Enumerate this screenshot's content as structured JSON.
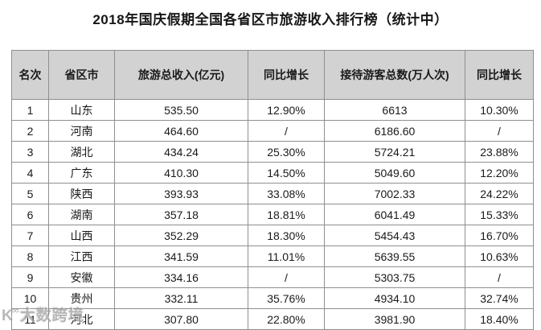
{
  "title": "2018年国庆假期全国各省区市旅游收入排行榜（统计中）",
  "chart_data": {
    "type": "table",
    "title": "2018年国庆假期全国各省区市旅游收入排行榜（统计中）",
    "columns": [
      "名次",
      "省区市",
      "旅游总收入(亿元)",
      "同比增长",
      "接待游客总数(万人次)",
      "同比增长"
    ],
    "rows": [
      [
        "1",
        "山东",
        "535.50",
        "12.90%",
        "6613",
        "10.30%"
      ],
      [
        "2",
        "河南",
        "464.60",
        "/",
        "6186.60",
        "/"
      ],
      [
        "3",
        "湖北",
        "434.24",
        "25.30%",
        "5724.21",
        "23.88%"
      ],
      [
        "4",
        "广东",
        "410.30",
        "14.50%",
        "5049.60",
        "12.20%"
      ],
      [
        "5",
        "陕西",
        "393.93",
        "33.08%",
        "7002.33",
        "24.22%"
      ],
      [
        "6",
        "湖南",
        "357.18",
        "18.81%",
        "6041.49",
        "15.33%"
      ],
      [
        "7",
        "山西",
        "352.29",
        "18.30%",
        "5454.43",
        "16.70%"
      ],
      [
        "8",
        "江西",
        "341.59",
        "11.01%",
        "5639.55",
        "10.63%"
      ],
      [
        "9",
        "安徽",
        "334.16",
        "/",
        "5303.75",
        "/"
      ],
      [
        "10",
        "贵州",
        "332.11",
        "35.76%",
        "4934.10",
        "32.74%"
      ],
      [
        "11",
        "河北",
        "307.80",
        "22.80%",
        "3981.90",
        "18.40%"
      ]
    ]
  },
  "watermark": {
    "text": "大数跨境"
  },
  "colors": {
    "header_bg": "#d2d2d2",
    "border": "#8f8f8f",
    "text": "#1a1a1a"
  }
}
